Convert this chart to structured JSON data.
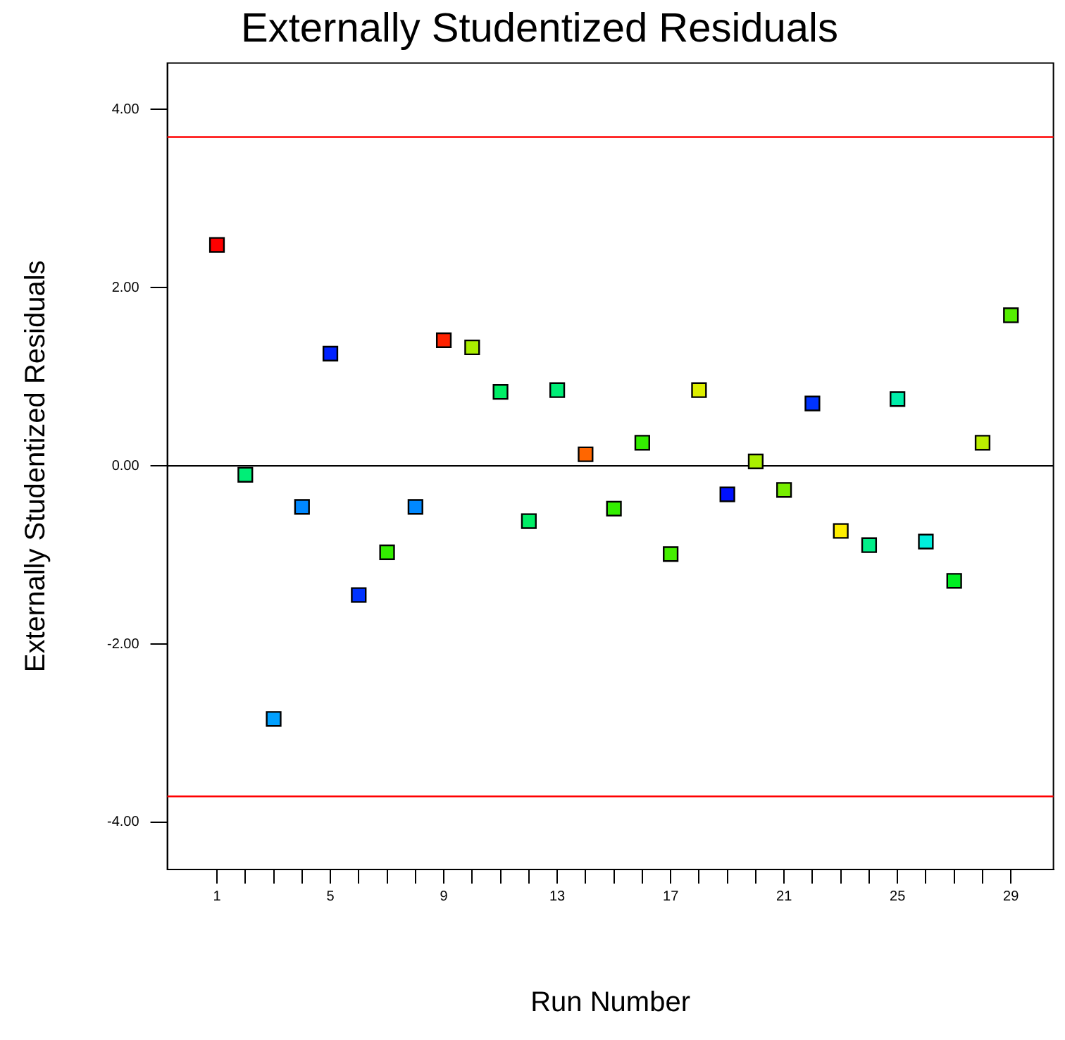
{
  "chart_data": {
    "type": "scatter",
    "title": "Externally Studentized Residuals",
    "xlabel": "Run Number",
    "ylabel": "Externally Studentized Residuals",
    "x": [
      1,
      2,
      3,
      4,
      5,
      6,
      7,
      8,
      9,
      10,
      11,
      12,
      13,
      14,
      15,
      16,
      17,
      18,
      19,
      20,
      21,
      22,
      23,
      24,
      25,
      26,
      27,
      28,
      29
    ],
    "values": [
      2.48,
      -0.1,
      -2.84,
      -0.46,
      1.26,
      -1.45,
      -0.97,
      -0.46,
      1.41,
      1.33,
      0.83,
      -0.62,
      0.85,
      0.13,
      -0.48,
      0.26,
      -0.99,
      0.85,
      -0.32,
      0.05,
      -0.27,
      0.7,
      -0.73,
      -0.89,
      0.75,
      -0.85,
      -1.29,
      0.26,
      1.69
    ],
    "colors": [
      "#ff0000",
      "#00ee77",
      "#00a0ff",
      "#0088ff",
      "#0022ff",
      "#0033ff",
      "#33ee00",
      "#0088ff",
      "#ff2200",
      "#aaee00",
      "#00ee66",
      "#00ee66",
      "#00ee77",
      "#ff6600",
      "#33ee00",
      "#33ee00",
      "#44ee00",
      "#ddee00",
      "#0011ff",
      "#aaee00",
      "#77ee00",
      "#0033ff",
      "#ffee00",
      "#00ee88",
      "#00eeaa",
      "#00eedd",
      "#00ee22",
      "#bbee00",
      "#55ee00"
    ],
    "xlim": [
      -0.75,
      30.5
    ],
    "xticks": [
      1,
      {
        "value": 2,
        "label": null
      },
      {
        "value": 3,
        "label": null
      },
      {
        "value": 4,
        "label": null
      },
      5,
      {
        "value": 6,
        "label": null
      },
      {
        "value": 7,
        "label": null
      },
      {
        "value": 8,
        "label": null
      },
      9,
      {
        "value": 10,
        "label": null
      },
      {
        "value": 11,
        "label": null
      },
      {
        "value": 12,
        "label": null
      },
      13,
      {
        "value": 14,
        "label": null
      },
      {
        "value": 15,
        "label": null
      },
      {
        "value": 16,
        "label": null
      },
      17,
      {
        "value": 18,
        "label": null
      },
      {
        "value": 19,
        "label": null
      },
      {
        "value": 20,
        "label": null
      },
      21,
      {
        "value": 22,
        "label": null
      },
      {
        "value": 23,
        "label": null
      },
      {
        "value": 24,
        "label": null
      },
      25,
      {
        "value": 26,
        "label": null
      },
      {
        "value": 27,
        "label": null
      },
      {
        "value": 28,
        "label": null
      },
      29
    ],
    "ylim": [
      -4.53,
      4.52
    ],
    "yticks": [
      {
        "value": -4,
        "label": "-4.00"
      },
      {
        "value": -2,
        "label": "-2.00"
      },
      {
        "value": 0,
        "label": "0.00"
      },
      {
        "value": 2,
        "label": "2.00"
      },
      {
        "value": 4,
        "label": "4.00"
      }
    ],
    "ref_lines": [
      {
        "axis": "y",
        "value": 3.69,
        "color": "#ff0000"
      },
      {
        "axis": "y",
        "value": -3.71,
        "color": "#ff0000"
      },
      {
        "axis": "y",
        "value": 0,
        "color": "#000000"
      }
    ],
    "marker": "square",
    "grid": false,
    "legend": false
  }
}
